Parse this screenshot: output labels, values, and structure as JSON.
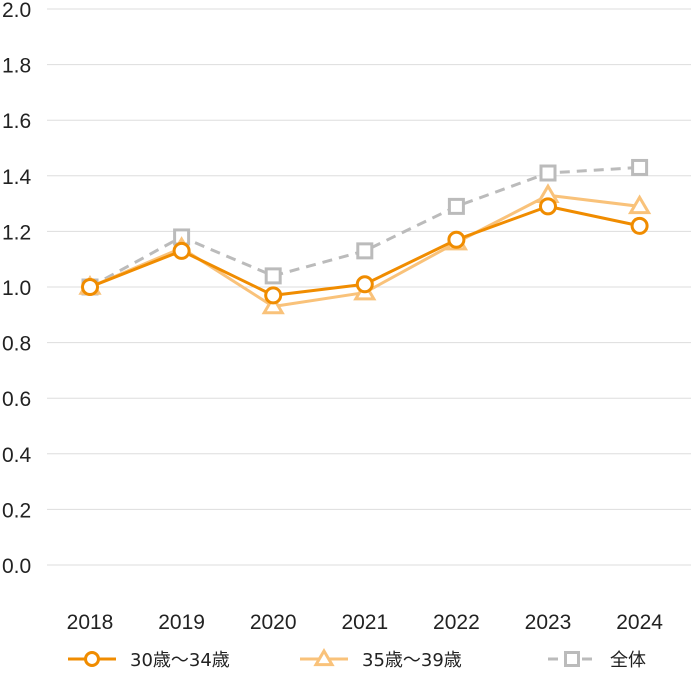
{
  "chart_data": {
    "type": "line",
    "title": "",
    "xlabel": "",
    "ylabel": "",
    "categories": [
      "2018",
      "2019",
      "2020",
      "2021",
      "2022",
      "2023",
      "2024"
    ],
    "ylim": [
      0,
      2.0
    ],
    "yticks": [
      "0.0",
      "0.2",
      "0.4",
      "0.6",
      "0.8",
      "1.0",
      "1.2",
      "1.4",
      "1.6",
      "1.8",
      "2.0"
    ],
    "grid": true,
    "legend_position": "bottom",
    "series": [
      {
        "name": "30歳〜34歳",
        "marker": "circle",
        "style": "solid",
        "color": "#f08c00",
        "values": [
          1.0,
          1.13,
          0.97,
          1.01,
          1.17,
          1.29,
          1.22
        ]
      },
      {
        "name": "35歳〜39歳",
        "marker": "triangle",
        "style": "solid",
        "color": "#f9c27a",
        "values": [
          1.0,
          1.14,
          0.93,
          0.98,
          1.16,
          1.33,
          1.29
        ]
      },
      {
        "name": "全体",
        "marker": "square",
        "style": "dashed",
        "color": "#bbbbbb",
        "values": [
          1.0,
          1.18,
          1.04,
          1.13,
          1.29,
          1.41,
          1.43
        ]
      }
    ]
  }
}
